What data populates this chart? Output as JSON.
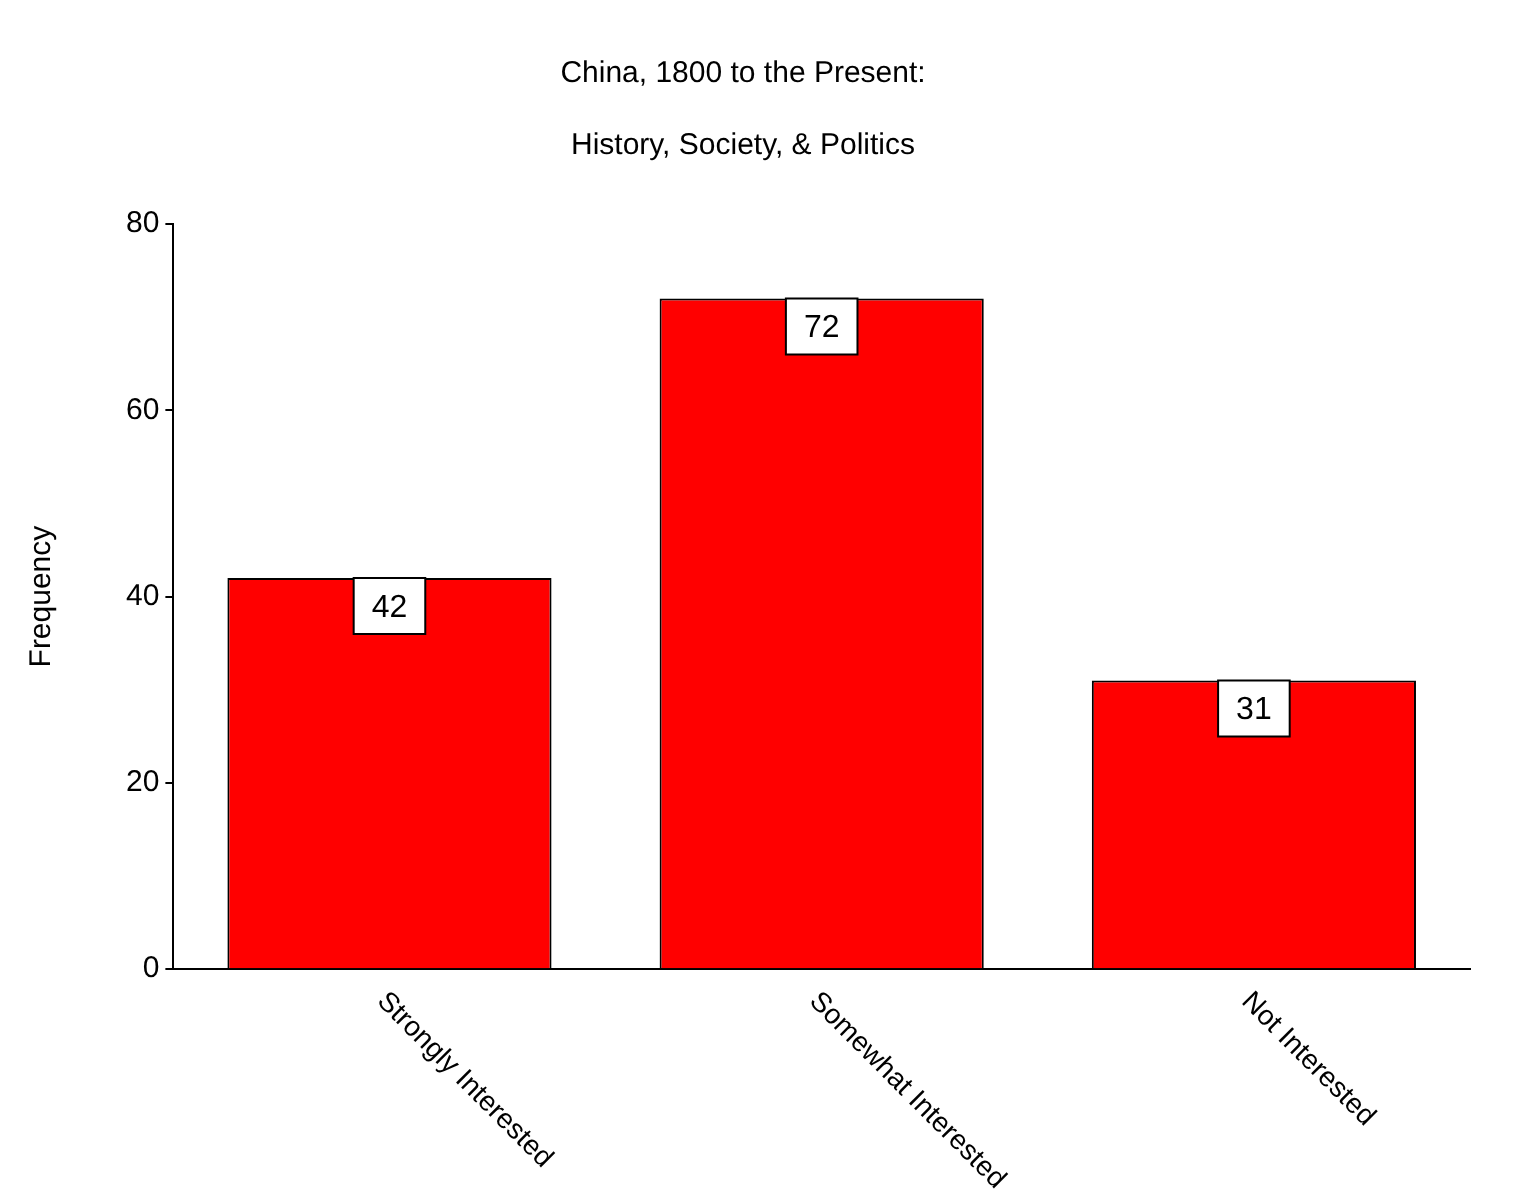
{
  "chart_data": {
    "type": "bar",
    "title": "China, 1800 to the Present:",
    "subtitle": "History, Society, & Politics",
    "ylabel": "Frequency",
    "categories": [
      "Strongly Interested",
      "Somewhat Interested",
      "Not Interested"
    ],
    "values": [
      42,
      72,
      31
    ],
    "color": "#ff0000",
    "ylim": [
      0,
      80
    ],
    "yticks": [
      0,
      20,
      40,
      60,
      80
    ],
    "data_labels": true,
    "legend": false
  }
}
